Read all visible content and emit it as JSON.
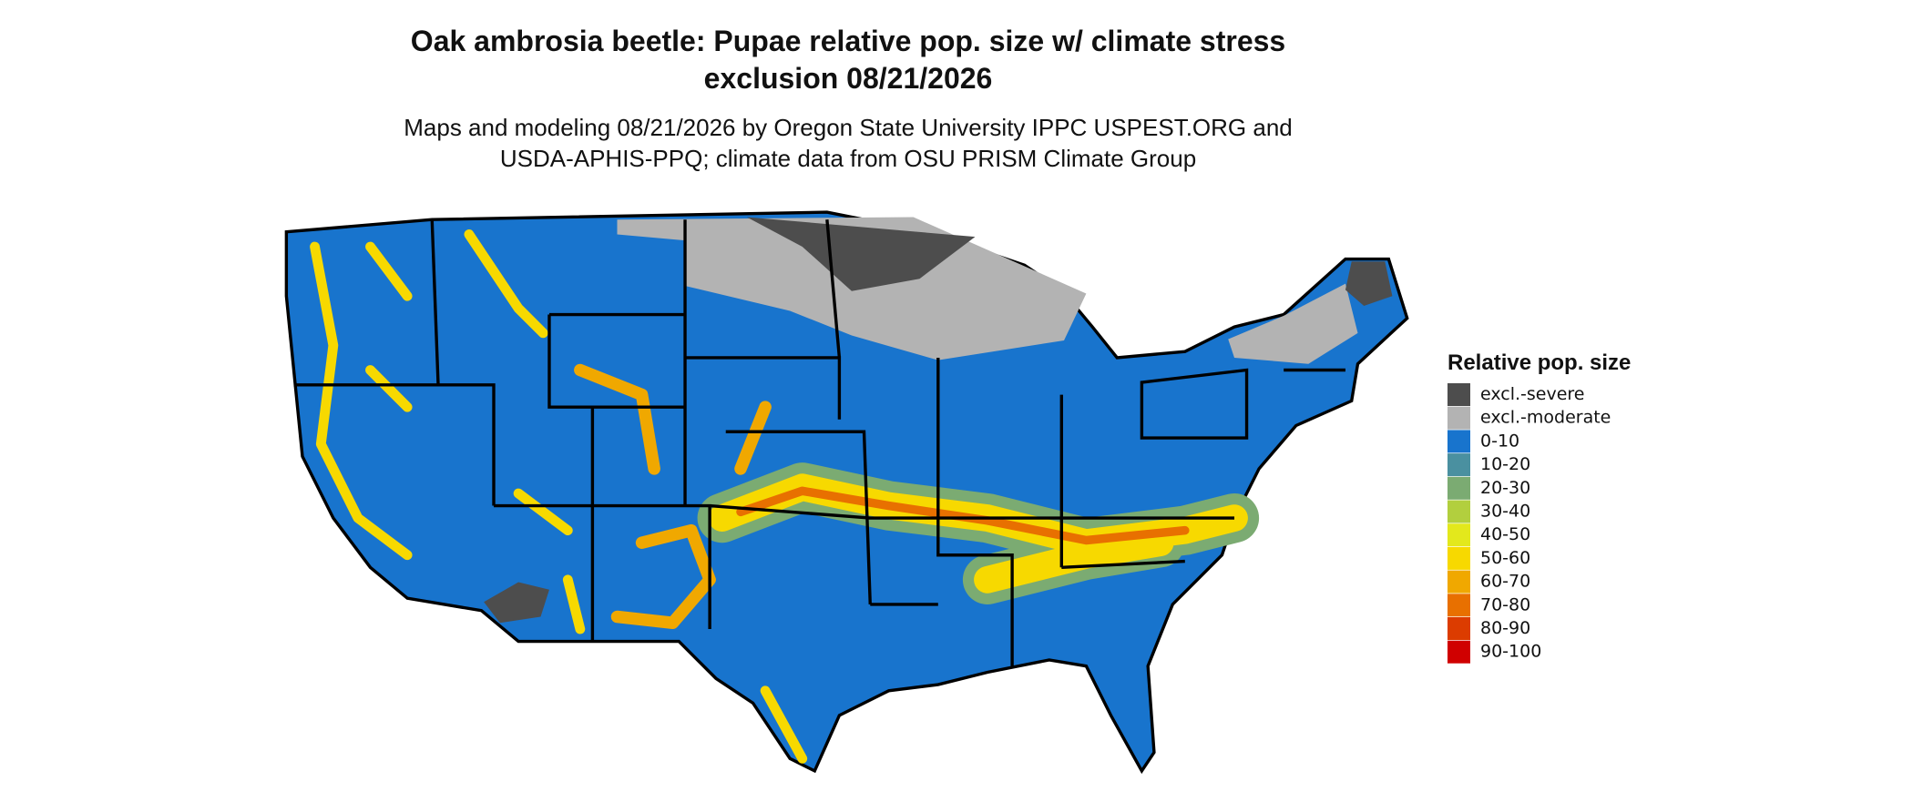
{
  "title": [
    "Oak ambrosia beetle: Pupae relative pop. size w/ climate stress",
    "exclusion 08/21/2026"
  ],
  "subtitle": [
    "Maps and modeling 08/21/2026 by Oregon State University IPPC USPEST.ORG and",
    "USDA-APHIS-PPQ; climate data from OSU PRISM Climate Group"
  ],
  "legend": {
    "title": "Relative pop. size",
    "items": [
      {
        "label": "excl.-severe",
        "color": "#4d4d4d"
      },
      {
        "label": "excl.-moderate",
        "color": "#b3b3b3"
      },
      {
        "label": "0-10",
        "color": "#1874cd"
      },
      {
        "label": "10-20",
        "color": "#4a90a0"
      },
      {
        "label": "20-30",
        "color": "#7bab72"
      },
      {
        "label": "30-40",
        "color": "#b2cf3e"
      },
      {
        "label": "40-50",
        "color": "#e3e81c"
      },
      {
        "label": "50-60",
        "color": "#f7d900"
      },
      {
        "label": "60-70",
        "color": "#f0a800"
      },
      {
        "label": "70-80",
        "color": "#e87000"
      },
      {
        "label": "80-90",
        "color": "#dc3c00"
      },
      {
        "label": "90-100",
        "color": "#d00000"
      }
    ]
  }
}
